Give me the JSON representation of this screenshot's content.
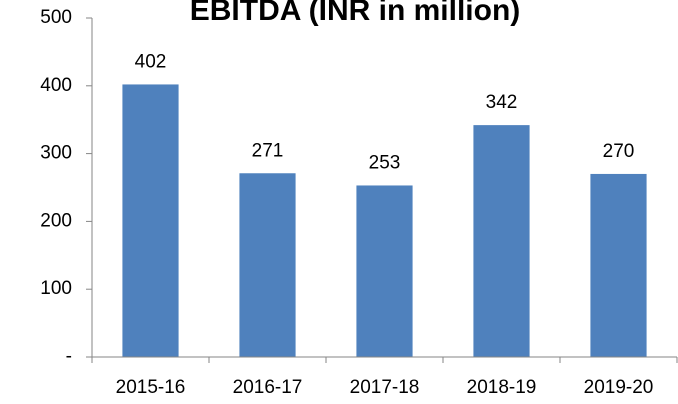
{
  "chart_data": {
    "type": "bar",
    "title": "EBITDA (INR in million)",
    "categories": [
      "2015-16",
      "2016-17",
      "2017-18",
      "2018-19",
      "2019-20"
    ],
    "values": [
      402,
      271,
      253,
      342,
      270
    ],
    "color": "#4f81bd",
    "ylim": [
      0,
      500
    ],
    "yticks": [
      {
        "value": 0,
        "label": "-"
      },
      100,
      200,
      300,
      400,
      500
    ],
    "grid": false
  }
}
